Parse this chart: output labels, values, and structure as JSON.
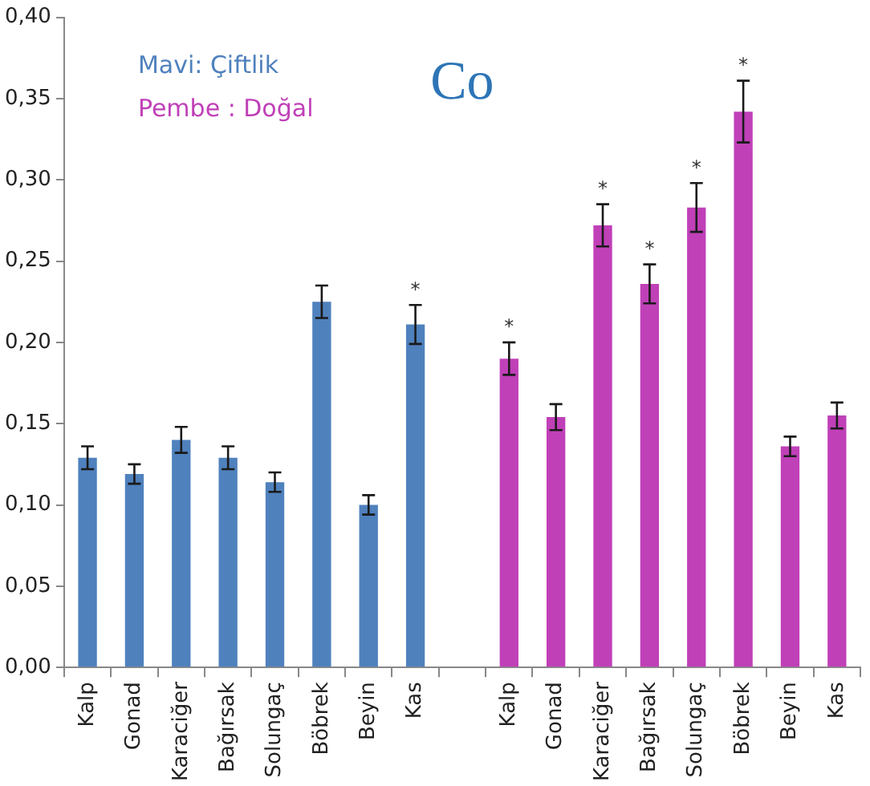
{
  "chart_data": {
    "type": "bar",
    "title": "Co",
    "categories": [
      "Kalp",
      "Gonad",
      "Karaciğer",
      "Bağırsak",
      "Solungaç",
      "Böbrek",
      "Beyin",
      "Kas",
      null,
      "Kalp",
      "Gonad",
      "Karaciğer",
      "Bağırsak",
      "Solungaç",
      "Böbrek",
      "Beyin",
      "Kas"
    ],
    "series": [
      {
        "name": "Mavi: Çiftlik",
        "color": "#4f81bd",
        "values": [
          0.129,
          0.119,
          0.14,
          0.129,
          0.114,
          0.225,
          0.1,
          0.211,
          null,
          null,
          null,
          null,
          null,
          null,
          null,
          null,
          null
        ],
        "errors": [
          0.007,
          0.006,
          0.008,
          0.007,
          0.006,
          0.01,
          0.006,
          0.012,
          null,
          null,
          null,
          null,
          null,
          null,
          null,
          null,
          null
        ],
        "value_labels": [
          null,
          null,
          null,
          null,
          null,
          null,
          null,
          "*",
          null,
          null,
          null,
          null,
          null,
          null,
          null,
          null,
          null
        ]
      },
      {
        "name": "Pembe : Doğal",
        "color": "#c040b8",
        "values": [
          null,
          null,
          null,
          null,
          null,
          null,
          null,
          null,
          null,
          0.19,
          0.154,
          0.272,
          0.236,
          0.283,
          0.342,
          0.136,
          0.155
        ],
        "errors": [
          null,
          null,
          null,
          null,
          null,
          null,
          null,
          null,
          null,
          0.01,
          0.008,
          0.013,
          0.012,
          0.015,
          0.019,
          0.006,
          0.008
        ],
        "value_labels": [
          null,
          null,
          null,
          null,
          null,
          null,
          null,
          null,
          null,
          "*",
          null,
          "*",
          "*",
          "*",
          "*",
          null,
          null
        ]
      }
    ],
    "ylim": [
      0,
      0.4
    ],
    "yticks": [
      {
        "value": 0,
        "label": "0,00"
      },
      {
        "value": 0.05,
        "label": "0,05"
      },
      {
        "value": 0.1,
        "label": "0,10"
      },
      {
        "value": 0.15,
        "label": "0,15"
      },
      {
        "value": 0.2,
        "label": "0,20"
      },
      {
        "value": 0.25,
        "label": "0,25"
      },
      {
        "value": 0.3,
        "label": "0,30"
      },
      {
        "value": 0.35,
        "label": "0,35"
      },
      {
        "value": 0.4,
        "label": "0,40"
      }
    ],
    "grid": false,
    "legend": "top left"
  }
}
